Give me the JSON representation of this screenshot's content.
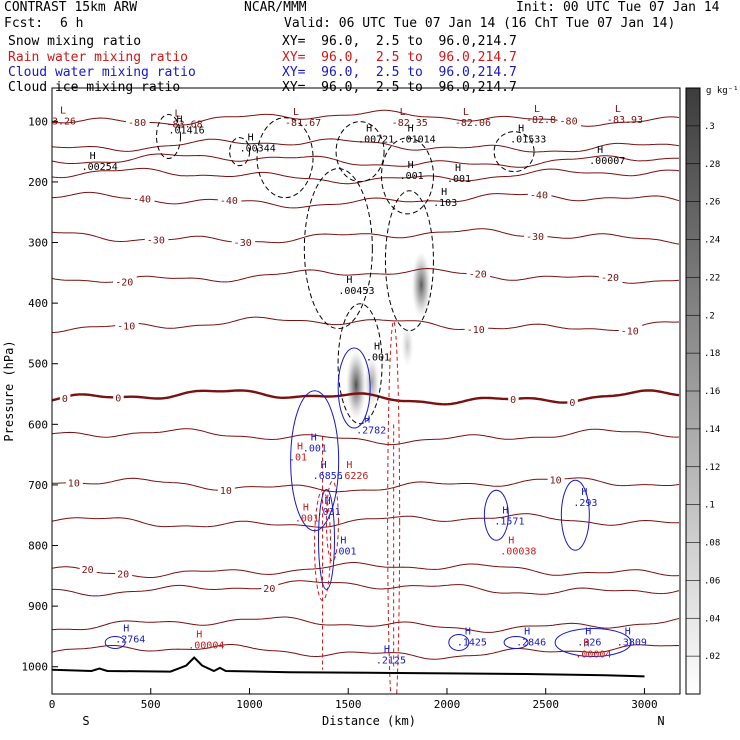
{
  "header": {
    "model": "CONTRAST 15km ARW",
    "center": "NCAR/MMM",
    "init": "Init: 00 UTC Tue 07 Jan 14",
    "fcst_label": "Fcst:",
    "fcst_value": "6 h",
    "valid": "Valid: 06 UTC Tue 07 Jan 14 (16 ChT Tue 07 Jan 14)",
    "fields": [
      {
        "name": "Snow mixing ratio",
        "xy": "XY=  96.0,  2.5 to  96.0,214.7",
        "color": "#000000"
      },
      {
        "name": "Rain water mixing ratio",
        "xy": "XY=  96.0,  2.5 to  96.0,214.7",
        "color": "#d01818"
      },
      {
        "name": "Cloud water mixing ratio",
        "xy": "XY=  96.0,  2.5 to  96.0,214.7",
        "color": "#1818c8"
      },
      {
        "name": "Cloud ice mixing ratio",
        "xy": "XY=  96.0,  2.5 to  96.0,214.7",
        "color": "#000000"
      }
    ]
  },
  "chart_data": {
    "type": "contour",
    "xlabel": "Distance (km)",
    "ylabel": "Pressure (hPa)",
    "xlim": [
      0,
      3180
    ],
    "ylim": [
      1045,
      45
    ],
    "x_ticks": [
      0,
      500,
      1000,
      1500,
      2000,
      2500,
      3000
    ],
    "y_ticks": [
      100,
      200,
      300,
      400,
      500,
      600,
      700,
      800,
      900,
      1000
    ],
    "x_end_labels": {
      "left": "S",
      "right": "N"
    },
    "colorbar": {
      "unit": "g kg⁻¹",
      "ticks": [
        ".02",
        ".04",
        ".06",
        ".08",
        ".1",
        ".12",
        ".14",
        ".16",
        ".18",
        ".2",
        ".22",
        ".24",
        ".26",
        ".28",
        ".3"
      ],
      "range": [
        0,
        0.32
      ],
      "color_low": "#ffffff",
      "color_high": "#3c3c3c"
    },
    "temperature_contours": {
      "color": "#7a1010",
      "levels": [
        {
          "value": -80,
          "p": 95,
          "labels": [
            {
              "text": "-80",
              "x": 385
            },
            {
              "text": "-80",
              "x": 2570
            }
          ]
        },
        {
          "value": -70,
          "p": 140,
          "labels": []
        },
        {
          "value": -60,
          "p": 165,
          "labels": []
        },
        {
          "value": -50,
          "p": 190,
          "labels": []
        },
        {
          "value": -40,
          "p": 230,
          "labels": [
            {
              "text": "-40",
              "x": 410
            },
            {
              "text": "-40",
              "x": 850
            },
            {
              "text": "-40",
              "x": 2420
            }
          ]
        },
        {
          "value": -30,
          "p": 290,
          "labels": [
            {
              "text": "-30",
              "x": 480
            },
            {
              "text": "-30",
              "x": 920
            },
            {
              "text": "-30",
              "x": 2400
            }
          ]
        },
        {
          "value": -20,
          "p": 355,
          "labels": [
            {
              "text": "-20",
              "x": 320
            },
            {
              "text": "-20",
              "x": 2110
            },
            {
              "text": "-20",
              "x": 2780
            }
          ]
        },
        {
          "value": -10,
          "p": 435,
          "labels": [
            {
              "text": "-10",
              "x": 330
            },
            {
              "text": "-10",
              "x": 2100
            },
            {
              "text": "-10",
              "x": 2880
            }
          ]
        },
        {
          "value": 0,
          "p": 555,
          "bold": true,
          "labels": [
            {
              "text": "0",
              "x": 50
            },
            {
              "text": "0",
              "x": 320
            },
            {
              "text": "0",
              "x": 2320
            },
            {
              "text": "0",
              "x": 2620
            }
          ]
        },
        {
          "value": 5,
          "p": 620,
          "labels": []
        },
        {
          "value": 10,
          "p": 700,
          "labels": [
            {
              "text": "10",
              "x": 80
            },
            {
              "text": "10",
              "x": 850
            },
            {
              "text": "10",
              "x": 2520
            }
          ]
        },
        {
          "value": 15,
          "p": 760,
          "labels": []
        },
        {
          "value": 20,
          "p": 840,
          "labels": [
            {
              "text": "20",
              "x": 150
            },
            {
              "text": "20",
              "x": 330
            }
          ]
        },
        {
          "value": 20,
          "p": 870,
          "labels": [
            {
              "text": "20",
              "x": 1070
            }
          ]
        },
        {
          "value": 25,
          "p": 930,
          "labels": []
        },
        {
          "value": 30,
          "p": 975,
          "labels": []
        }
      ]
    },
    "snow_max_labels": [
      {
        "text": ".00254",
        "x": 150,
        "p": 180
      },
      {
        "text": ".01416",
        "x": 590,
        "p": 120
      },
      {
        "text": ".00344",
        "x": 950,
        "p": 150
      },
      {
        "text": ".00721",
        "x": 1550,
        "p": 135
      },
      {
        "text": ".01014",
        "x": 1760,
        "p": 135
      },
      {
        "text": ".01533",
        "x": 2320,
        "p": 135
      },
      {
        "text": ".00007",
        "x": 2720,
        "p": 170
      },
      {
        "text": ".00453",
        "x": 1450,
        "p": 385
      },
      {
        "text": ".103",
        "x": 1930,
        "p": 240
      },
      {
        "text": ".001",
        "x": 1760,
        "p": 195
      },
      {
        "text": ".001",
        "x": 2000,
        "p": 200
      },
      {
        "text": ".001",
        "x": 1590,
        "p": 495
      }
    ],
    "temperature_min_labels": [
      {
        "text": "3.26",
        "x": 0,
        "p": 105
      },
      {
        "text": "-83.68",
        "x": 580,
        "p": 110
      },
      {
        "text": "-81.67",
        "x": 1180,
        "p": 108
      },
      {
        "text": "-82.35",
        "x": 1720,
        "p": 108
      },
      {
        "text": "-82.06",
        "x": 2040,
        "p": 108
      },
      {
        "text": "-82.8",
        "x": 2400,
        "p": 103
      },
      {
        "text": "-83.93",
        "x": 2810,
        "p": 103
      }
    ],
    "rain_max_labels": [
      {
        "text": ".6226",
        "x": 1450,
        "p": 690
      },
      {
        "text": ".00038",
        "x": 2270,
        "p": 815
      },
      {
        "text": ".00004",
        "x": 690,
        "p": 970
      },
      {
        "text": ".00004",
        "x": 2650,
        "p": 985
      },
      {
        "text": ".001",
        "x": 1230,
        "p": 760
      },
      {
        "text": ".01",
        "x": 1200,
        "p": 660
      }
    ],
    "cloudwater_max_labels": [
      {
        "text": ".2782",
        "x": 1540,
        "p": 615
      },
      {
        "text": ".6856",
        "x": 1320,
        "p": 690
      },
      {
        "text": ".1571",
        "x": 2240,
        "p": 765
      },
      {
        "text": ".293",
        "x": 2640,
        "p": 735
      },
      {
        "text": ".2764",
        "x": 320,
        "p": 960
      },
      {
        "text": ".2125",
        "x": 1640,
        "p": 995
      },
      {
        "text": ".1425",
        "x": 2050,
        "p": 965
      },
      {
        "text": ".2846",
        "x": 2350,
        "p": 965
      },
      {
        "text": ".326",
        "x": 2660,
        "p": 965
      },
      {
        "text": ".3809",
        "x": 2860,
        "p": 965
      },
      {
        "text": ".031",
        "x": 1340,
        "p": 750
      },
      {
        "text": ".001",
        "x": 1420,
        "p": 815
      },
      {
        "text": ".001",
        "x": 1270,
        "p": 645
      }
    ],
    "shading_cores": [
      {
        "x": 1540,
        "p": 535,
        "value": 0.26
      },
      {
        "x": 1620,
        "p": 530,
        "value": 0.14
      },
      {
        "x": 1870,
        "p": 370,
        "value": 0.24
      },
      {
        "x": 1800,
        "p": 470,
        "value": 0.08
      }
    ],
    "terrain": {
      "x": [
        0,
        200,
        240,
        280,
        600,
        680,
        720,
        760,
        820,
        850,
        880,
        1200,
        1600,
        2000,
        2400,
        2800,
        3000
      ],
      "p": [
        1005,
        1007,
        1003,
        1007,
        1008,
        998,
        985,
        998,
        1007,
        1002,
        1007,
        1009,
        1010,
        1011,
        1012,
        1014,
        1016
      ]
    }
  }
}
